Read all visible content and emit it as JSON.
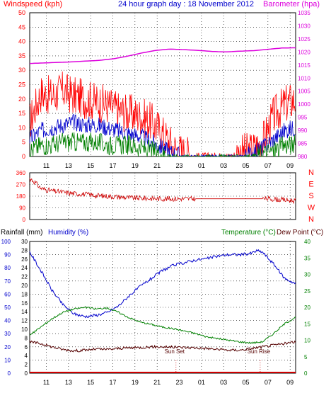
{
  "title": "24 hour graph day : 18 November 2012",
  "colors": {
    "wind_speed": "#ff0000",
    "wind_avg": "#0000cc",
    "wind_green": "#008000",
    "barometer": "#dd00dd",
    "direction": "#cc0000",
    "humidity": "#0000cc",
    "temperature": "#008000",
    "dewpoint": "#550000",
    "rainfall": "#cc0000",
    "grid": "#000000"
  },
  "x_ticks": [
    "11",
    "13",
    "15",
    "17",
    "19",
    "21",
    "23",
    "01",
    "03",
    "05",
    "07",
    "09"
  ],
  "chart_data": [
    {
      "type": "line",
      "ylabel": "Windspeed (kph)",
      "ylabel2": "Barometer (hpa)",
      "ylim": [
        0,
        50
      ],
      "y_ticks": [
        0,
        5,
        10,
        15,
        20,
        25,
        30,
        35,
        40,
        45,
        50
      ],
      "ylim2": [
        980,
        1035
      ],
      "y2_ticks": [
        980,
        985,
        990,
        995,
        1000,
        1005,
        1010,
        1015,
        1020,
        1025,
        1030,
        1035
      ],
      "x_hours": [
        0,
        1,
        2,
        3,
        4,
        5,
        6,
        7,
        8,
        9,
        10,
        11,
        12,
        13,
        14,
        15,
        16,
        17,
        18,
        19,
        20,
        21,
        22,
        23,
        24
      ],
      "series": [
        {
          "key": "gust",
          "values": [
            12,
            22,
            21,
            23,
            21,
            20,
            19,
            18,
            16,
            15,
            14,
            12,
            8,
            3,
            1,
            0,
            0,
            0,
            0,
            1,
            2,
            5,
            14,
            18,
            20
          ]
        },
        {
          "key": "average",
          "values": [
            6,
            9,
            10,
            11,
            12,
            11,
            11,
            10,
            9,
            8,
            7,
            5,
            3,
            1,
            0,
            0,
            0,
            0,
            0,
            0,
            1,
            3,
            6,
            9,
            10
          ]
        },
        {
          "key": "low",
          "values": [
            2,
            4,
            4,
            5,
            5,
            5,
            5,
            4,
            4,
            4,
            3,
            2,
            1,
            0,
            0,
            0,
            0,
            0,
            0,
            0,
            0,
            1,
            2,
            4,
            4
          ]
        },
        {
          "key": "barometer",
          "axis": "right",
          "values": [
            1015.6,
            1015.8,
            1016.0,
            1016.2,
            1016.5,
            1016.8,
            1017.4,
            1018.4,
            1019.6,
            1020.6,
            1021.1,
            1020.9,
            1020.6,
            1020.2,
            1020.0,
            1020.3,
            1020.5,
            1021.0,
            1021.5,
            1021.6
          ]
        }
      ],
      "barometer_x_hours": [
        0,
        1,
        2,
        3,
        4,
        5,
        6,
        7,
        8,
        9,
        10,
        11,
        12,
        13,
        14,
        15,
        16,
        17,
        18,
        19
      ]
    },
    {
      "type": "line",
      "ylim": [
        0,
        360
      ],
      "y_ticks": [
        0,
        90,
        180,
        270,
        360
      ],
      "right_labels": [
        "N",
        "W",
        "S",
        "E",
        "N"
      ],
      "series": [
        {
          "key": "direction",
          "x": [
            0,
            0.5,
            1,
            2,
            3,
            4,
            5,
            6,
            7,
            8,
            9,
            10,
            11,
            12,
            13,
            14,
            15,
            16,
            17,
            18,
            19,
            20,
            21,
            22,
            23,
            24
          ],
          "values": [
            320,
            285,
            240,
            220,
            210,
            200,
            195,
            185,
            180,
            175,
            168,
            165,
            162,
            160,
            160,
            160,
            160,
            160,
            160,
            160,
            160,
            160,
            160,
            158,
            150,
            145
          ]
        }
      ]
    },
    {
      "type": "line",
      "ylabel_left1": "Rainfall (mm)",
      "ylabel_left2": "Humidity (%)",
      "ylabel_right1": "Temperature (°C)",
      "ylabel_right2": "Dew Point (°C)",
      "humidity_ticks": [
        0,
        10,
        20,
        30,
        40,
        50,
        60,
        70,
        80,
        90,
        100
      ],
      "rain_ticks": [
        0,
        2,
        4,
        6,
        8,
        10,
        12,
        14,
        16,
        18,
        20,
        22,
        24,
        26,
        28,
        30
      ],
      "temp_ticks": [
        0,
        5,
        10,
        15,
        20,
        25,
        30,
        35,
        40
      ],
      "annotations": [
        {
          "text": "Sun Set",
          "hour": 13.2
        },
        {
          "text": "Sun Rise",
          "hour": 20.8
        }
      ],
      "series": [
        {
          "key": "humidity",
          "axis": "humidity",
          "x": [
            0,
            1,
            2,
            3,
            4,
            5,
            6,
            7,
            8,
            9,
            10,
            11,
            12,
            13,
            14,
            15,
            16,
            17,
            18,
            19,
            20,
            20.5,
            21,
            22,
            23,
            24
          ],
          "values": [
            92,
            78,
            63,
            52,
            45,
            43,
            44,
            46,
            51,
            59,
            66,
            72,
            78,
            82,
            84,
            86,
            87,
            89,
            90,
            90,
            91,
            93,
            92,
            83,
            72,
            68
          ]
        },
        {
          "key": "temperature",
          "axis": "temp",
          "x": [
            0,
            1,
            2,
            3,
            4,
            5,
            6,
            7,
            8,
            9,
            10,
            11,
            12,
            13,
            14,
            15,
            16,
            17,
            18,
            19,
            20,
            21,
            22,
            23,
            24
          ],
          "values": [
            11.5,
            14,
            16.5,
            18.5,
            19.5,
            20,
            19.5,
            19.8,
            18.5,
            16.8,
            15.5,
            14.8,
            14,
            13.5,
            12.8,
            12,
            11,
            10.5,
            10,
            9.5,
            9.2,
            9.5,
            12,
            15,
            17
          ]
        },
        {
          "key": "dewpoint",
          "axis": "temp",
          "x": [
            0,
            1,
            2,
            3,
            4,
            5,
            6,
            7,
            8,
            9,
            10,
            11,
            12,
            13,
            14,
            15,
            16,
            17,
            18,
            19,
            20,
            21,
            22,
            23,
            24
          ],
          "values": [
            9.5,
            9,
            8,
            7.2,
            6.8,
            7,
            7.3,
            7.2,
            7.5,
            7.7,
            7.8,
            8,
            8,
            7.9,
            7.8,
            7.7,
            7.5,
            7.2,
            7,
            7,
            7.5,
            8,
            8.5,
            9,
            9.5
          ]
        },
        {
          "key": "rainfall",
          "axis": "rain",
          "x": [
            0,
            24
          ],
          "values": [
            0,
            0
          ]
        }
      ]
    }
  ]
}
